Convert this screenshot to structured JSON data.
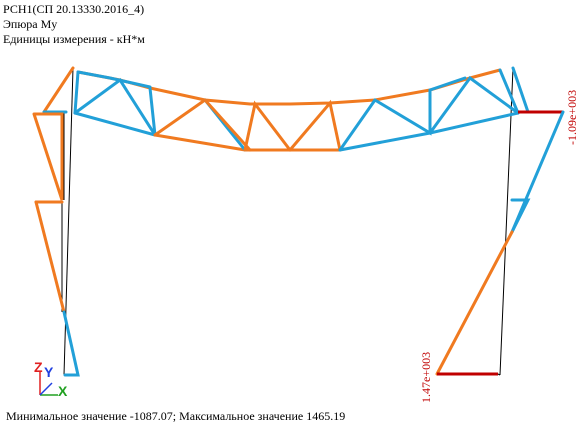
{
  "header": {
    "title": "РСН1(СП 20.13330.2016_4)",
    "diagram": "Эпюра My",
    "units": "Единицы измерения - кН*м"
  },
  "labels": {
    "right_top": "-1.09e+003",
    "right_bottom": "1.47e+003"
  },
  "axes": {
    "z": "Z",
    "y": "Y",
    "x": "X"
  },
  "footer": "Минимальное значение  -1087.07; Максимальное значение  1465.19"
}
